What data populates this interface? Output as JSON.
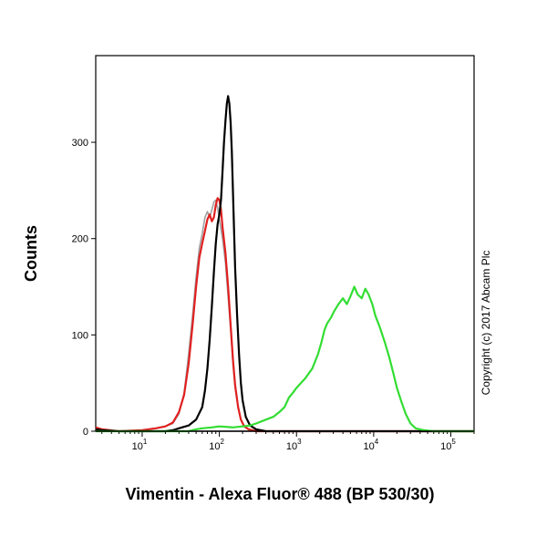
{
  "chart_data": {
    "type": "line",
    "xlabel": "Vimentin - Alexa Fluor® 488 (BP 530/30)",
    "ylabel": "Counts",
    "annotation": "Copyright (c) 2017 Abcam Plc",
    "x_scale": "log",
    "xlim": [
      2.5,
      200000
    ],
    "ylim": [
      0,
      390
    ],
    "x_ticks": [
      {
        "value": 10,
        "base": "10",
        "exp": "1"
      },
      {
        "value": 100,
        "base": "10",
        "exp": "2"
      },
      {
        "value": 1000,
        "base": "10",
        "exp": "3"
      },
      {
        "value": 10000,
        "base": "10",
        "exp": "4"
      },
      {
        "value": 100000,
        "base": "10",
        "exp": "5"
      }
    ],
    "y_ticks": [
      {
        "value": 0,
        "label": "0"
      },
      {
        "value": 100,
        "label": "100"
      },
      {
        "value": 200,
        "label": "200"
      },
      {
        "value": 300,
        "label": "300"
      }
    ],
    "grid": false,
    "series": [
      {
        "color": "#a0a0a0",
        "points": [
          [
            2.5,
            3
          ],
          [
            3,
            1
          ],
          [
            5,
            0
          ],
          [
            10,
            1
          ],
          [
            15,
            3
          ],
          [
            20,
            5
          ],
          [
            25,
            8
          ],
          [
            30,
            18
          ],
          [
            35,
            40
          ],
          [
            40,
            80
          ],
          [
            45,
            120
          ],
          [
            50,
            160
          ],
          [
            55,
            190
          ],
          [
            60,
            205
          ],
          [
            65,
            222
          ],
          [
            70,
            228
          ],
          [
            75,
            222
          ],
          [
            80,
            230
          ],
          [
            85,
            238
          ],
          [
            90,
            240
          ],
          [
            95,
            232
          ],
          [
            100,
            220
          ],
          [
            110,
            200
          ],
          [
            120,
            175
          ],
          [
            130,
            140
          ],
          [
            140,
            105
          ],
          [
            150,
            70
          ],
          [
            160,
            45
          ],
          [
            175,
            25
          ],
          [
            190,
            12
          ],
          [
            210,
            5
          ],
          [
            240,
            2
          ],
          [
            300,
            0
          ],
          [
            200000,
            0
          ]
        ]
      },
      {
        "color": "#e02020",
        "points": [
          [
            2.5,
            4
          ],
          [
            3,
            2
          ],
          [
            5,
            0
          ],
          [
            10,
            1
          ],
          [
            15,
            3
          ],
          [
            20,
            5
          ],
          [
            25,
            9
          ],
          [
            30,
            20
          ],
          [
            35,
            38
          ],
          [
            40,
            70
          ],
          [
            45,
            110
          ],
          [
            50,
            150
          ],
          [
            55,
            180
          ],
          [
            60,
            195
          ],
          [
            65,
            208
          ],
          [
            70,
            220
          ],
          [
            75,
            225
          ],
          [
            80,
            218
          ],
          [
            85,
            222
          ],
          [
            90,
            235
          ],
          [
            95,
            242
          ],
          [
            100,
            240
          ],
          [
            105,
            230
          ],
          [
            110,
            212
          ],
          [
            120,
            185
          ],
          [
            130,
            150
          ],
          [
            140,
            110
          ],
          [
            150,
            75
          ],
          [
            160,
            48
          ],
          [
            175,
            25
          ],
          [
            190,
            12
          ],
          [
            210,
            5
          ],
          [
            240,
            2
          ],
          [
            300,
            0
          ],
          [
            200000,
            0
          ]
        ]
      },
      {
        "color": "#000000",
        "points": [
          [
            2.5,
            2
          ],
          [
            3,
            1
          ],
          [
            5,
            0
          ],
          [
            20,
            0
          ],
          [
            25,
            1
          ],
          [
            30,
            3
          ],
          [
            40,
            6
          ],
          [
            50,
            12
          ],
          [
            60,
            25
          ],
          [
            65,
            42
          ],
          [
            70,
            65
          ],
          [
            75,
            95
          ],
          [
            80,
            130
          ],
          [
            85,
            165
          ],
          [
            90,
            195
          ],
          [
            95,
            215
          ],
          [
            100,
            225
          ],
          [
            105,
            240
          ],
          [
            110,
            270
          ],
          [
            115,
            300
          ],
          [
            120,
            322
          ],
          [
            125,
            340
          ],
          [
            130,
            348
          ],
          [
            135,
            340
          ],
          [
            140,
            320
          ],
          [
            145,
            290
          ],
          [
            150,
            250
          ],
          [
            155,
            210
          ],
          [
            160,
            170
          ],
          [
            170,
            120
          ],
          [
            180,
            80
          ],
          [
            190,
            50
          ],
          [
            200,
            32
          ],
          [
            220,
            15
          ],
          [
            250,
            6
          ],
          [
            300,
            2
          ],
          [
            400,
            0
          ],
          [
            200000,
            0
          ]
        ]
      },
      {
        "color": "#33dd33",
        "points": [
          [
            2.5,
            0
          ],
          [
            40,
            0
          ],
          [
            50,
            2
          ],
          [
            60,
            3
          ],
          [
            80,
            4
          ],
          [
            100,
            5
          ],
          [
            150,
            4
          ],
          [
            200,
            5
          ],
          [
            250,
            6
          ],
          [
            300,
            8
          ],
          [
            400,
            12
          ],
          [
            500,
            15
          ],
          [
            600,
            20
          ],
          [
            700,
            25
          ],
          [
            800,
            35
          ],
          [
            900,
            40
          ],
          [
            1000,
            45
          ],
          [
            1300,
            55
          ],
          [
            1600,
            65
          ],
          [
            1900,
            80
          ],
          [
            2100,
            92
          ],
          [
            2300,
            105
          ],
          [
            2500,
            112
          ],
          [
            2800,
            118
          ],
          [
            3100,
            125
          ],
          [
            3500,
            132
          ],
          [
            4000,
            138
          ],
          [
            4500,
            132
          ],
          [
            5000,
            140
          ],
          [
            5600,
            150
          ],
          [
            6200,
            142
          ],
          [
            7000,
            138
          ],
          [
            7800,
            148
          ],
          [
            8600,
            142
          ],
          [
            9600,
            132
          ],
          [
            10500,
            120
          ],
          [
            12000,
            108
          ],
          [
            14000,
            92
          ],
          [
            16000,
            76
          ],
          [
            18000,
            60
          ],
          [
            20000,
            45
          ],
          [
            23000,
            30
          ],
          [
            26000,
            18
          ],
          [
            30000,
            8
          ],
          [
            35000,
            3
          ],
          [
            45000,
            1
          ],
          [
            60000,
            0
          ],
          [
            200000,
            0
          ]
        ]
      }
    ]
  }
}
